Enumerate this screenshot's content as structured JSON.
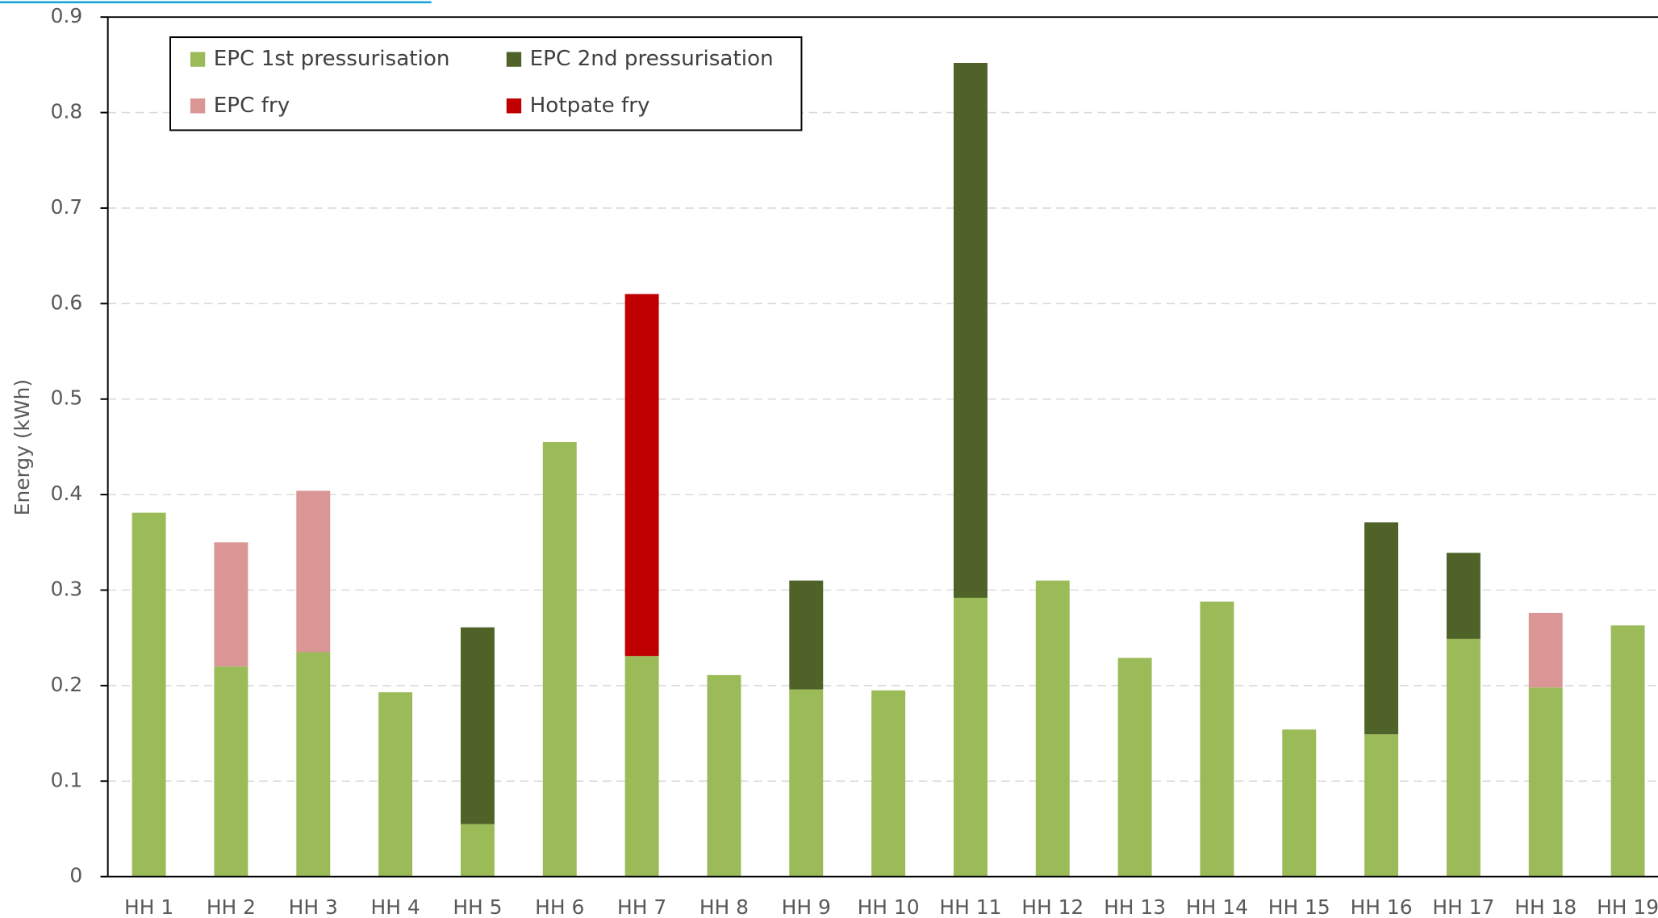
{
  "chart_data": {
    "type": "stacked_bar",
    "y_axis_label": "Energy (kWh)",
    "categories": [
      "HH 1",
      "HH 2",
      "HH 3",
      "HH 4",
      "HH 5",
      "HH 6",
      "HH 7",
      "HH 8",
      "HH 9",
      "HH 10",
      "HH 11",
      "HH 12",
      "HH 13",
      "HH 14",
      "HH 15",
      "HH 16",
      "HH 17",
      "HH 18",
      "HH 19"
    ],
    "series": [
      {
        "name": "EPC 1st pressurisation",
        "color": "#9bbb59",
        "values": [
          0.381,
          0.22,
          0.235,
          0.193,
          0.055,
          0.455,
          0.231,
          0.211,
          0.196,
          0.195,
          0.292,
          0.31,
          0.229,
          0.288,
          0.154,
          0.149,
          0.249,
          0.198,
          0.263
        ]
      },
      {
        "name": "EPC 2nd pressurisation",
        "color": "#4f6228",
        "values": [
          null,
          null,
          null,
          null,
          0.206,
          null,
          null,
          null,
          0.114,
          null,
          0.56,
          null,
          null,
          null,
          null,
          0.222,
          0.09,
          null,
          null
        ]
      },
      {
        "name": "EPC fry",
        "color": "#d99694",
        "values": [
          null,
          0.13,
          0.169,
          null,
          null,
          null,
          null,
          null,
          null,
          null,
          null,
          null,
          null,
          null,
          null,
          null,
          null,
          0.078,
          null
        ]
      },
      {
        "name": "Hotpate fry",
        "color": "#c00000",
        "values": [
          null,
          null,
          null,
          null,
          null,
          null,
          0.379,
          null,
          null,
          null,
          null,
          null,
          null,
          null,
          null,
          null,
          null,
          null,
          null
        ]
      }
    ],
    "ylim": [
      0,
      0.9
    ],
    "yticks": [
      0,
      0.1,
      0.2,
      0.3,
      0.4,
      0.5,
      0.6,
      0.7,
      0.8,
      0.9
    ],
    "grid": true,
    "legend_position": "top-left"
  }
}
